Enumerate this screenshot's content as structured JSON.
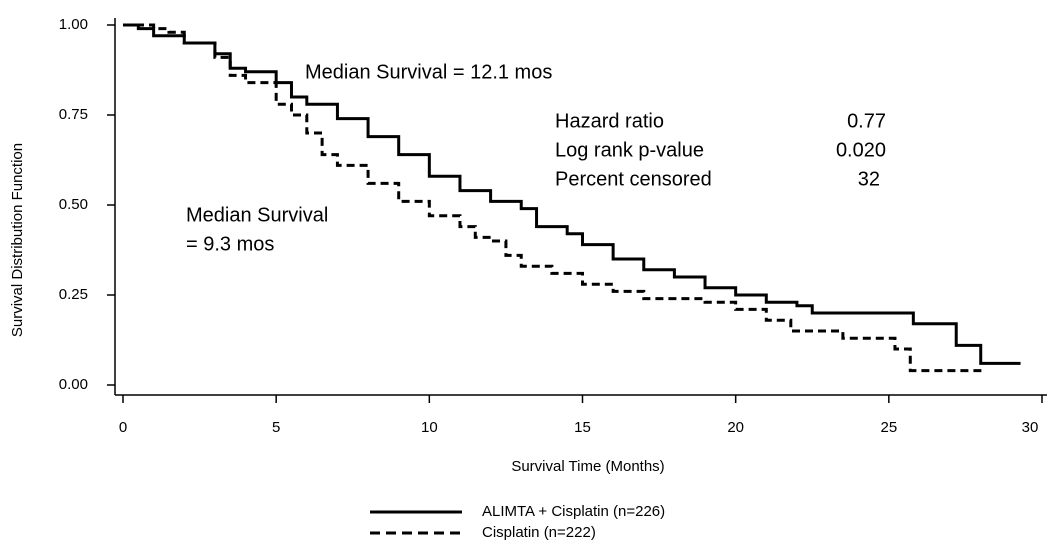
{
  "chart_data": {
    "type": "line",
    "step": true,
    "xlabel": "Survival Time (Months)",
    "ylabel": "Survival Distribution Function",
    "xlim": [
      0,
      30
    ],
    "xticks": [
      0,
      5,
      10,
      15,
      20,
      25,
      30
    ],
    "ylim": [
      0,
      1
    ],
    "yticks": [
      {
        "value": 0,
        "label": "0.00"
      },
      {
        "value": 0.25,
        "label": "0.25"
      },
      {
        "value": 0.5,
        "label": "0.50"
      },
      {
        "value": 0.75,
        "label": "0.75"
      },
      {
        "value": 1,
        "label": "1.00"
      }
    ],
    "annotations": [
      "Median Survival = 12.1 mos",
      "Median Survival",
      "= 9.3 mos"
    ],
    "stats": [
      [
        "Hazard ratio",
        "0.77"
      ],
      [
        "Log rank p-value",
        "0.020"
      ],
      [
        "Percent censored",
        "32"
      ]
    ],
    "series": [
      {
        "name": "ALIMTA + Cisplatin (n=226)",
        "color": "#000000",
        "line_style": "solid",
        "x": [
          0,
          0.5,
          1,
          2,
          3,
          3.5,
          4,
          5,
          5.5,
          6,
          7,
          8,
          9,
          10,
          11,
          12,
          13,
          13.5,
          14.5,
          15,
          16,
          17,
          18,
          19,
          20,
          21,
          22,
          22.5,
          25.8,
          27.2,
          28,
          29.3
        ],
        "values": [
          1,
          0.99,
          0.97,
          0.95,
          0.92,
          0.88,
          0.87,
          0.84,
          0.8,
          0.78,
          0.74,
          0.69,
          0.64,
          0.58,
          0.54,
          0.51,
          0.49,
          0.44,
          0.42,
          0.39,
          0.35,
          0.32,
          0.3,
          0.27,
          0.25,
          0.23,
          0.22,
          0.2,
          0.17,
          0.11,
          0.06,
          0.06
        ]
      },
      {
        "name": "Cisplatin (n=222)",
        "color": "#000000",
        "line_style": "dashed",
        "x": [
          0,
          1,
          1.5,
          2,
          3,
          3.5,
          4,
          5,
          5.5,
          6,
          6.5,
          7,
          8,
          9,
          10,
          11,
          11.5,
          12,
          12.5,
          13,
          14,
          15,
          16,
          17,
          19,
          20,
          21,
          21.8,
          23.5,
          25.2,
          25.7,
          28.1
        ],
        "values": [
          1,
          0.99,
          0.98,
          0.95,
          0.91,
          0.86,
          0.84,
          0.78,
          0.75,
          0.7,
          0.64,
          0.61,
          0.56,
          0.51,
          0.47,
          0.44,
          0.41,
          0.4,
          0.36,
          0.33,
          0.31,
          0.28,
          0.26,
          0.24,
          0.23,
          0.21,
          0.18,
          0.15,
          0.13,
          0.1,
          0.04,
          0.04
        ]
      }
    ]
  }
}
